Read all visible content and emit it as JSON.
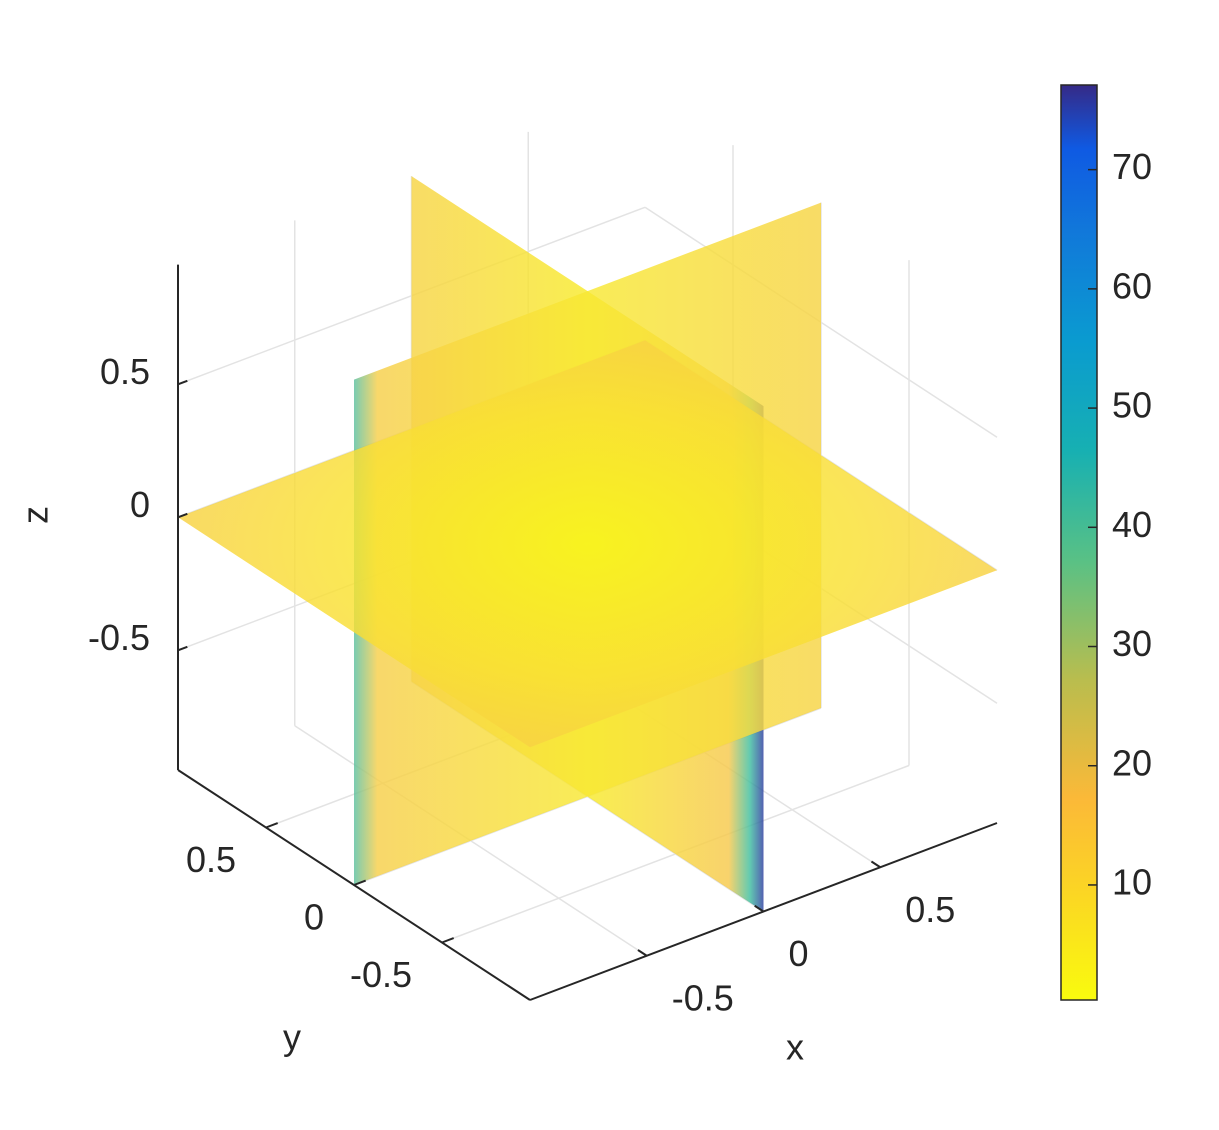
{
  "chart_data": {
    "type": "slice3d",
    "xlabel": "x",
    "ylabel": "y",
    "zlabel": "z",
    "xlim": [
      -1,
      1
    ],
    "ylim": [
      -1,
      1
    ],
    "zlim": [
      -0.95,
      0.95
    ],
    "xticks": [
      -0.5,
      0,
      0.5
    ],
    "yticks": [
      -0.5,
      0,
      0.5
    ],
    "zticks": [
      -0.5,
      0,
      0.5
    ],
    "slices": {
      "x": [
        0
      ],
      "y": [
        0
      ],
      "z": [
        0
      ]
    },
    "grid": true,
    "colorbar": {
      "clim": [
        0.35,
        77.1
      ],
      "ticks": [
        10,
        20,
        30,
        40,
        50,
        60,
        70
      ]
    }
  }
}
